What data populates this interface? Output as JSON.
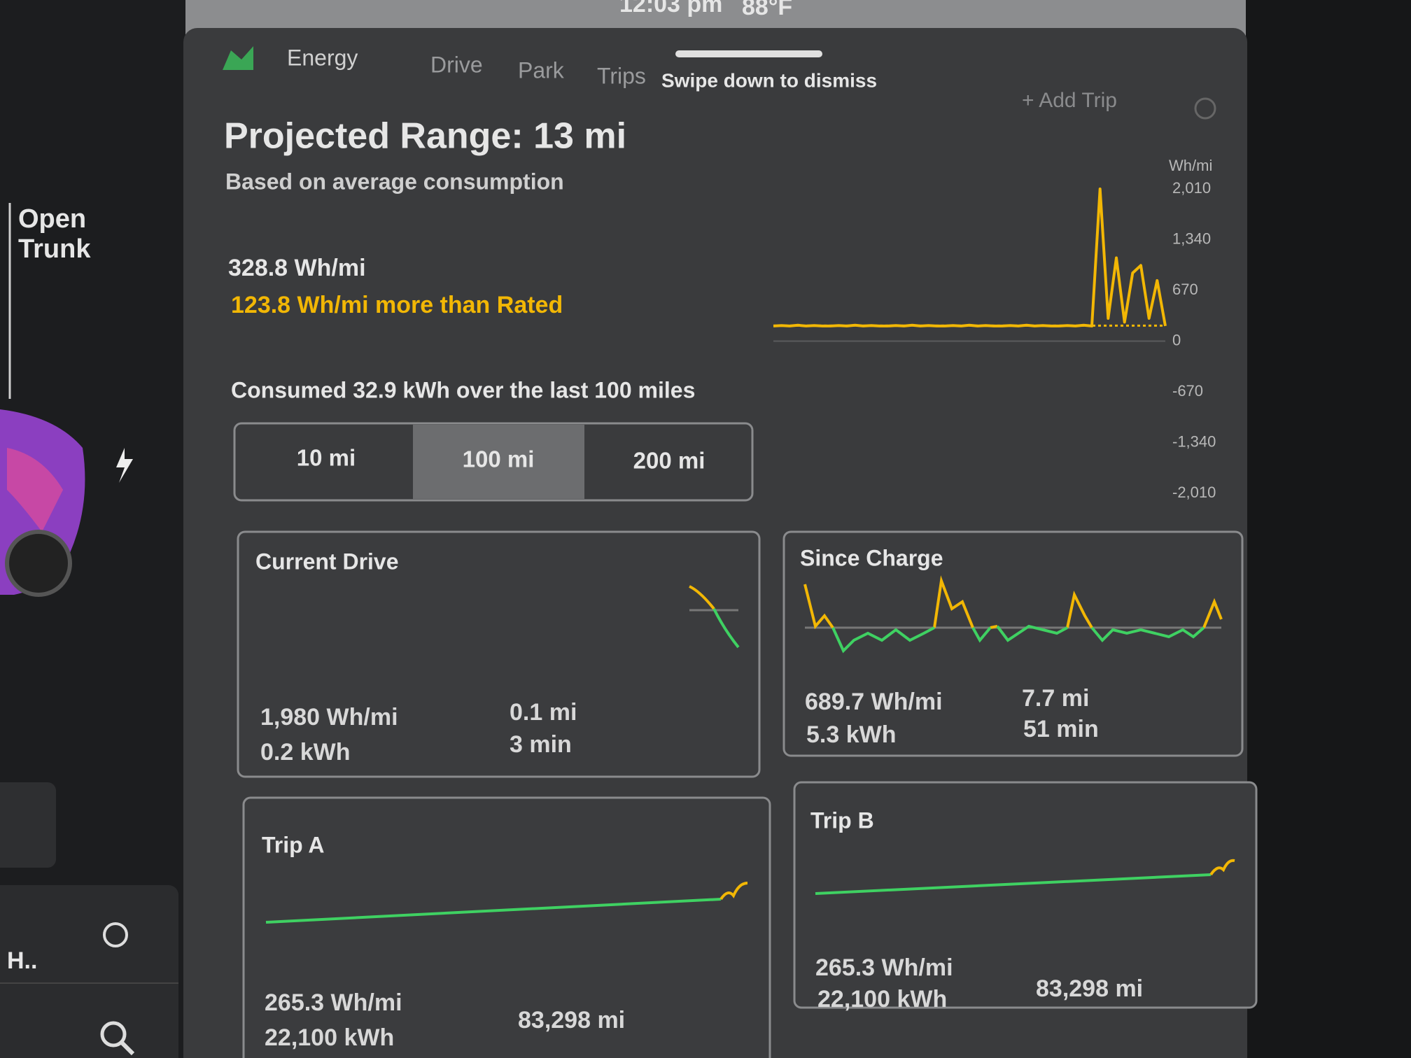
{
  "status_bar": {
    "time": "12:03 pm",
    "temperature": "88°F"
  },
  "tabs": [
    "Energy",
    "Drive",
    "Park",
    "Trips"
  ],
  "hint": "Swipe down to dismiss",
  "add_trip": "+ Add Trip",
  "sidebar": {
    "trunk": [
      "Open",
      "Trunk"
    ],
    "driver": "H.."
  },
  "energy": {
    "title": "Projected Range: 13 mi",
    "subtitle": "Based on average consumption",
    "average": "328.8 Wh/mi",
    "difference": "123.8 Wh/mi more than Rated",
    "consumed": "Consumed 32.9 kWh over the last 100 miles",
    "ranges": [
      "10 mi",
      "100 mi",
      "200 mi"
    ]
  },
  "chart_data": {
    "type": "line",
    "y_label": "Wh/mi",
    "color": "#f2b705",
    "rated": 205,
    "ylim": [
      -2010,
      2010
    ],
    "yticks": [
      {
        "value": 2010,
        "label": "2,010"
      },
      {
        "value": 1340,
        "label": "1,340"
      },
      670,
      0,
      -670,
      {
        "value": -1340,
        "label": "-1,340"
      },
      {
        "value": -2010,
        "label": "-2,010"
      }
    ],
    "values": [
      200,
      205,
      200,
      210,
      200,
      205,
      200,
      200,
      205,
      200,
      210,
      200,
      205,
      200,
      200,
      205,
      200,
      210,
      200,
      205,
      200,
      200,
      205,
      200,
      210,
      200,
      205,
      200,
      200,
      205,
      200,
      210,
      200,
      205,
      200,
      200,
      205,
      200,
      210,
      200,
      2010,
      300,
      1100,
      250,
      900,
      1000,
      300,
      800,
      200
    ]
  },
  "cards": [
    {
      "title": "Current Drive",
      "efficiency": "1,980 Wh/mi",
      "energy": "0.2 kWh",
      "distance": "0.1 mi",
      "time": "3 min"
    },
    {
      "title": "Since Charge",
      "efficiency": "689.7 Wh/mi",
      "energy": "5.3 kWh",
      "distance": "7.7 mi",
      "time": "51 min"
    },
    {
      "title": "Trip A",
      "efficiency": "265.3 Wh/mi",
      "energy": "22,100 kWh",
      "distance": "83,298 mi"
    },
    {
      "title": "Trip B",
      "efficiency": "265.3 Wh/mi",
      "energy": "22,100 kWh",
      "distance": "83,298 mi"
    }
  ]
}
